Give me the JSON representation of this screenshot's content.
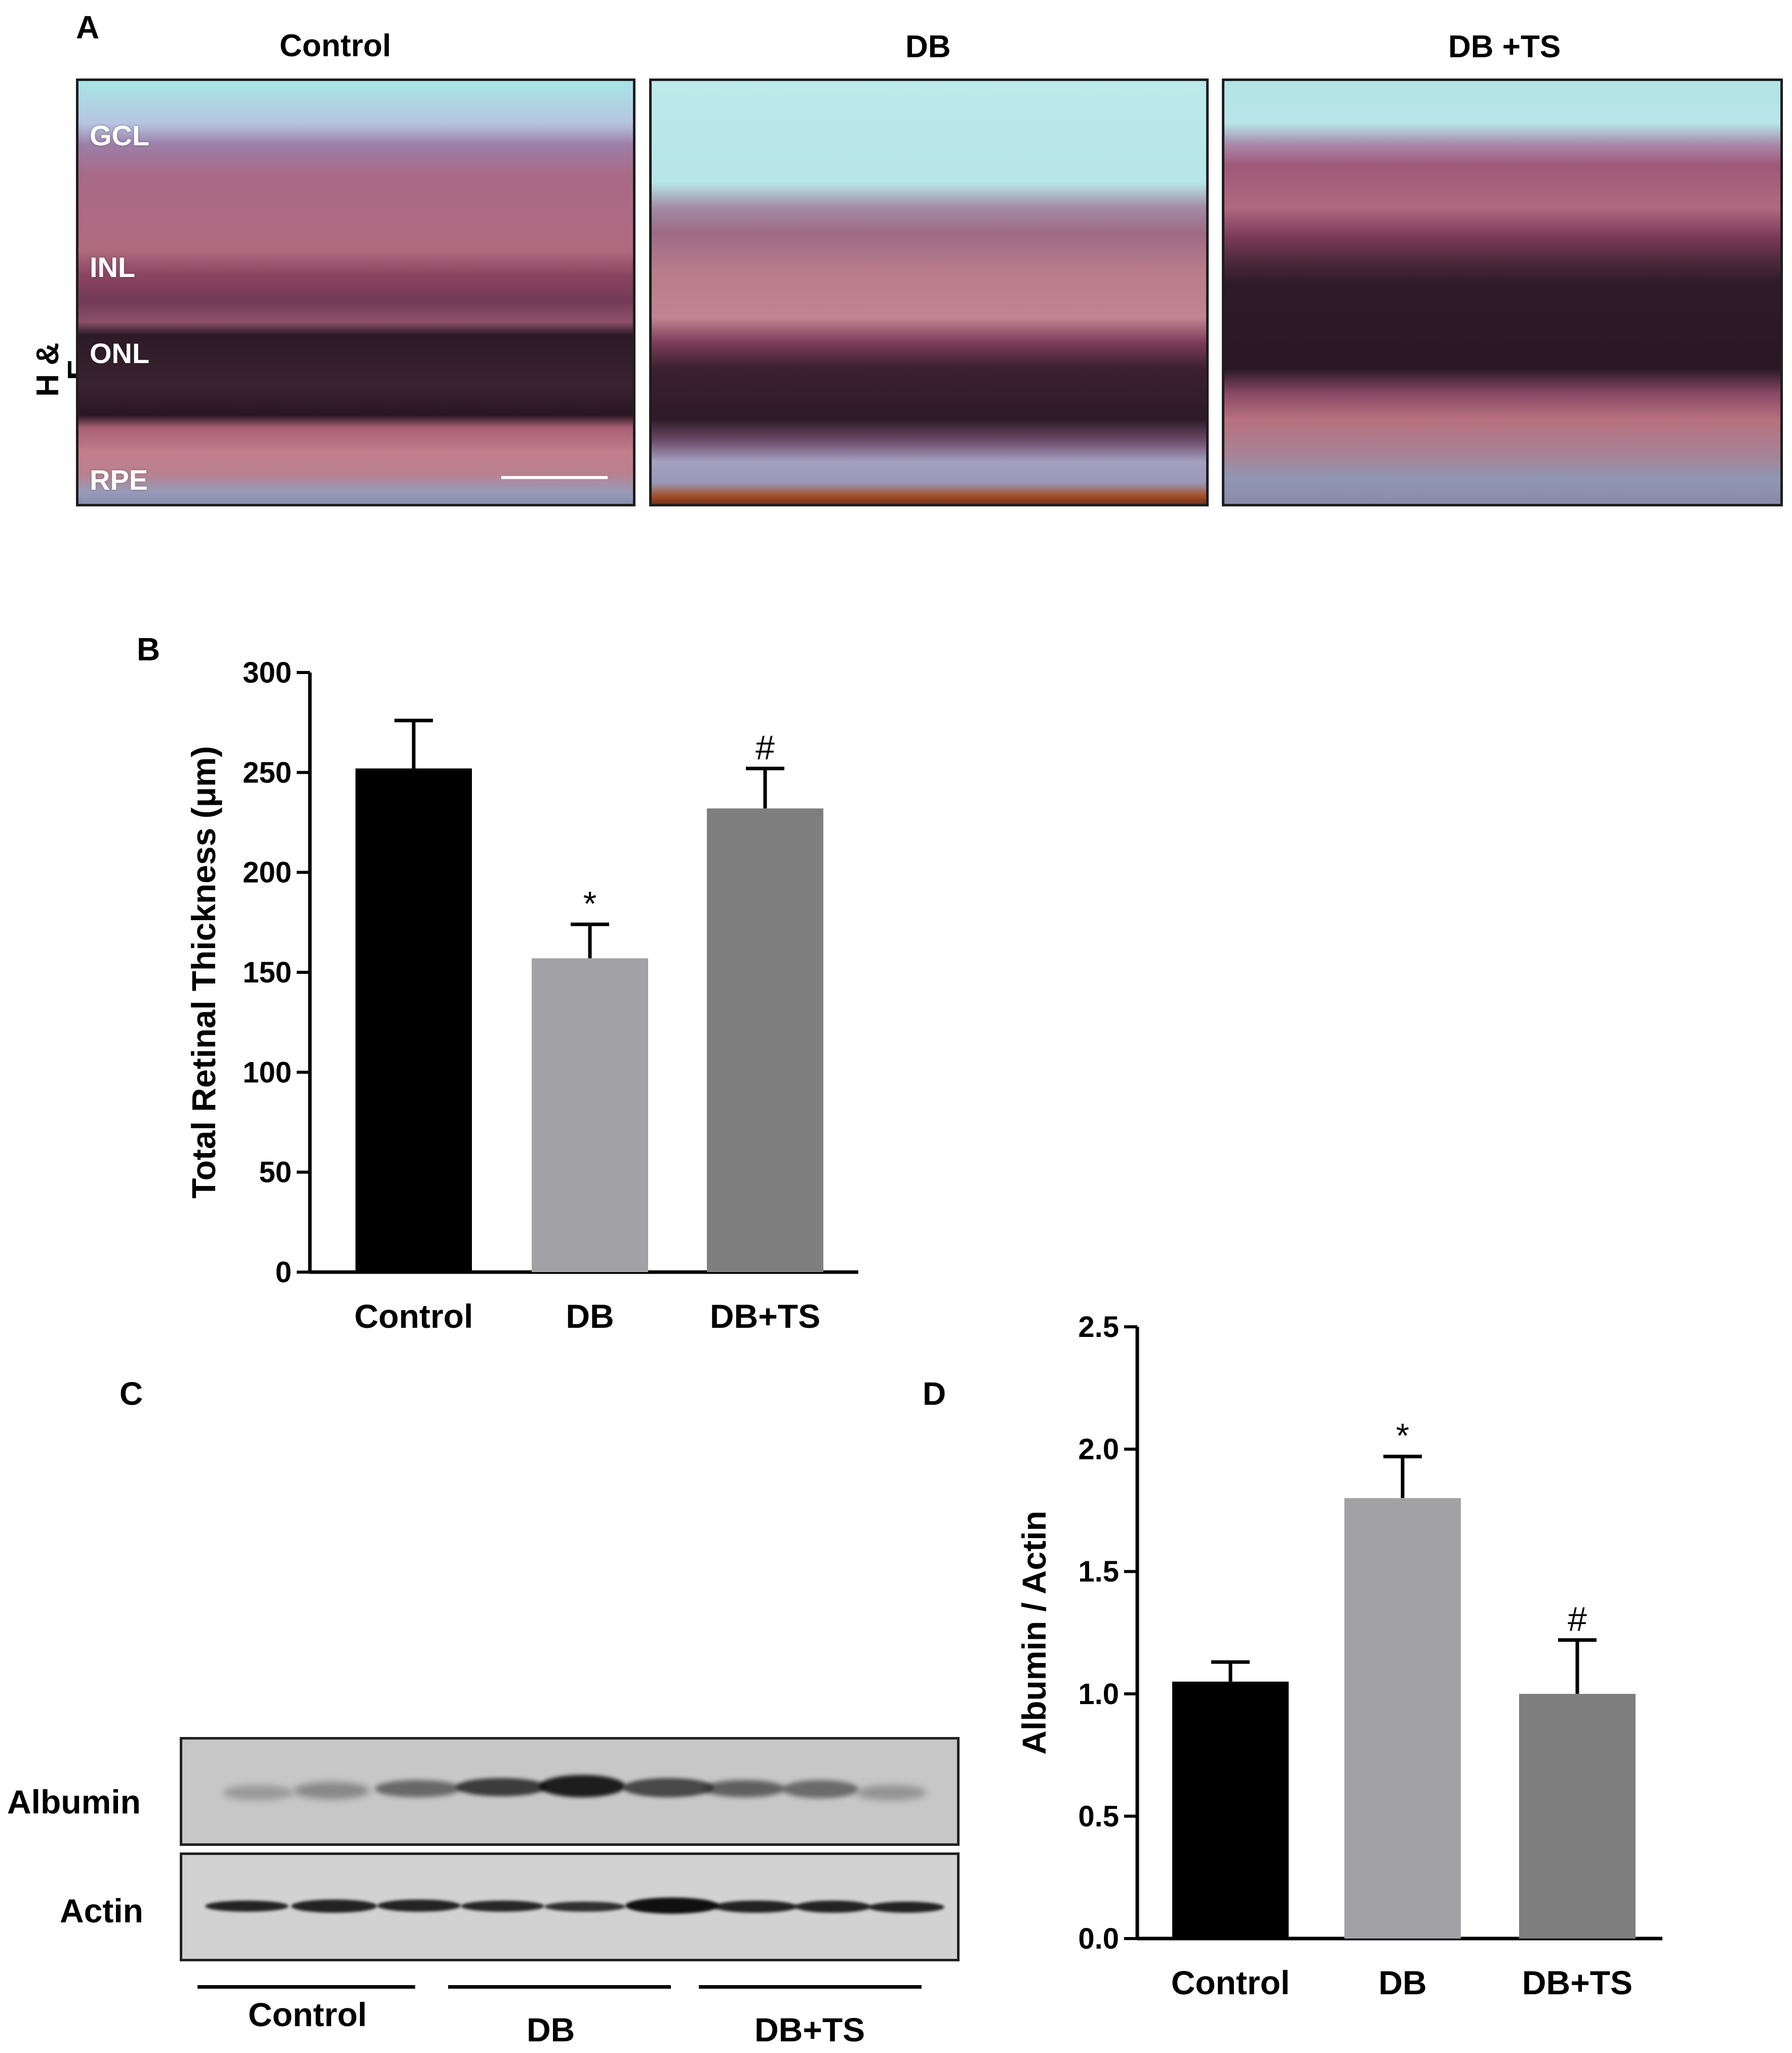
{
  "panelA": {
    "letter": "A",
    "columns": [
      "Control",
      "DB",
      "DB +TS"
    ],
    "stain": "H & E",
    "layers": [
      "GCL",
      "INL",
      "ONL",
      "RPE"
    ]
  },
  "panelB": {
    "letter": "B"
  },
  "panelC": {
    "letter": "C",
    "rows": [
      "Albumin",
      "Actin"
    ],
    "groups": [
      "Control",
      "DB",
      "DB+TS"
    ]
  },
  "panelD": {
    "letter": "D"
  },
  "colors": {
    "control": "#000000",
    "db": "#a2a2a6",
    "dbts": "#7f7f7f"
  },
  "chart_data": [
    {
      "id": "B",
      "type": "bar",
      "categories": [
        "Control",
        "DB",
        "DB+TS"
      ],
      "values": [
        252,
        157,
        232
      ],
      "errors": [
        24,
        17,
        20
      ],
      "markers": [
        "",
        "*",
        "#"
      ],
      "ylabel": "Total Retinal Thickness (μm)",
      "ylim": [
        0,
        300
      ],
      "yticks": [
        "0",
        "50",
        "100",
        "150",
        "200",
        "250",
        "300"
      ]
    },
    {
      "id": "D",
      "type": "bar",
      "categories": [
        "Control",
        "DB",
        "DB+TS"
      ],
      "values": [
        1.05,
        1.8,
        1.0
      ],
      "errors": [
        0.08,
        0.17,
        0.22
      ],
      "markers": [
        "",
        "*",
        "#"
      ],
      "ylabel": "Albumin / Actin",
      "ylim": [
        0,
        2.5
      ],
      "yticks": [
        "0.0",
        "0.5",
        "1.0",
        "1.5",
        "2.0",
        "2.5"
      ]
    }
  ]
}
